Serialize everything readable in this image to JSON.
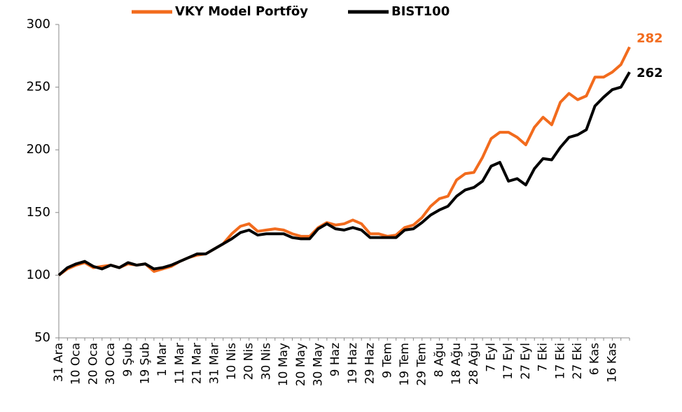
{
  "chart_data": {
    "type": "line",
    "categories": [
      "31 Ara",
      null,
      "10 Oca",
      null,
      "20 Oca",
      null,
      "30 Oca",
      null,
      "9 Şub",
      null,
      "19 Şub",
      null,
      "1 Mar",
      null,
      "11 Mar",
      null,
      "21 Mar",
      null,
      "31 Mar",
      null,
      "10 Nis",
      null,
      "20 Nis",
      null,
      "30 Nis",
      null,
      "10 May",
      null,
      "20 May",
      null,
      "30 May",
      null,
      "9 Haz",
      null,
      "19 Haz",
      null,
      "29 Haz",
      null,
      "9 Tem",
      null,
      "19 Tem",
      null,
      "29 Tem",
      null,
      "8 Ağu",
      null,
      "18 Ağu",
      null,
      "28 Ağu",
      null,
      "7 Eyl",
      null,
      "17 Eyl",
      null,
      "27 Eyl",
      null,
      "7 Eki",
      null,
      "17 Eki",
      null,
      "27 Eki",
      null,
      "6 Kas",
      null,
      "16 Kas",
      null,
      null
    ],
    "series": [
      {
        "name": "VKY Model Portföy",
        "color": "#f26b1d",
        "values": [
          100,
          105,
          108,
          110,
          106,
          107,
          108,
          106,
          109,
          108,
          109,
          103,
          105,
          107,
          111,
          114,
          116,
          117,
          121,
          125,
          133,
          139,
          141,
          135,
          136,
          137,
          136,
          133,
          131,
          131,
          138,
          142,
          140,
          141,
          144,
          141,
          133,
          133,
          131,
          132,
          138,
          140,
          146,
          155,
          161,
          163,
          176,
          181,
          182,
          194,
          209,
          214,
          214,
          210,
          204,
          218,
          226,
          220,
          238,
          245,
          240,
          243,
          258,
          258,
          262,
          268,
          282
        ]
      },
      {
        "name": "BIST100",
        "color": "#000000",
        "values": [
          100,
          106,
          109,
          111,
          107,
          105,
          108,
          106,
          110,
          108,
          109,
          105,
          106,
          108,
          111,
          114,
          117,
          117,
          121,
          125,
          129,
          134,
          136,
          132,
          133,
          133,
          133,
          130,
          129,
          129,
          137,
          141,
          137,
          136,
          138,
          136,
          130,
          130,
          130,
          130,
          136,
          137,
          142,
          148,
          152,
          155,
          163,
          168,
          170,
          175,
          187,
          190,
          175,
          177,
          172,
          185,
          193,
          192,
          202,
          210,
          212,
          216,
          235,
          242,
          248,
          250,
          262
        ]
      }
    ],
    "ylim": [
      50,
      300
    ],
    "yticks": [
      50,
      100,
      150,
      200,
      250,
      300
    ]
  }
}
